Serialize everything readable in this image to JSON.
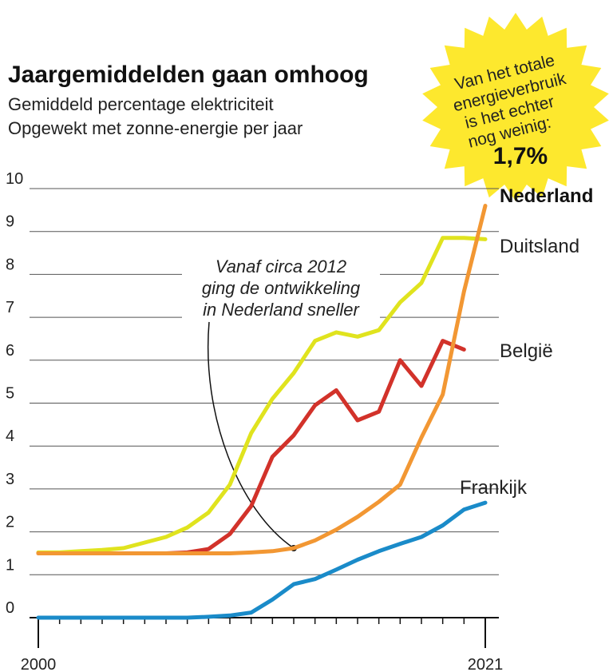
{
  "chart_data": {
    "type": "line",
    "title": "Jaargemiddelden gaan omhoog",
    "subtitle_lines": [
      "Gemiddeld percentage elektriciteit",
      "Opgewekt met zonne-energie per jaar"
    ],
    "ylim": [
      0,
      10
    ],
    "yticks": [
      "0",
      "1",
      "2",
      "3",
      "4",
      "5",
      "6",
      "7",
      "8",
      "9",
      "10"
    ],
    "xlim": [
      2000,
      2021
    ],
    "xtick_labels": [
      "2000",
      "2021"
    ],
    "x": [
      2000,
      2001,
      2002,
      2003,
      2004,
      2005,
      2006,
      2007,
      2008,
      2009,
      2010,
      2011,
      2012,
      2013,
      2014,
      2015,
      2016,
      2017,
      2018,
      2019,
      2020,
      2021
    ],
    "series": [
      {
        "name": "Duitsland",
        "color": "#e0e31e",
        "values": [
          1.52,
          1.52,
          1.55,
          1.58,
          1.62,
          1.75,
          1.88,
          2.1,
          2.45,
          3.1,
          4.3,
          5.1,
          5.7,
          6.45,
          6.65,
          6.55,
          6.7,
          7.35,
          7.8,
          8.85,
          8.85,
          8.82
        ]
      },
      {
        "name": "België",
        "color": "#d2322a",
        "values": [
          1.5,
          1.5,
          1.5,
          1.5,
          1.5,
          1.5,
          1.5,
          1.52,
          1.6,
          1.95,
          2.6,
          3.75,
          4.25,
          4.95,
          5.3,
          4.6,
          4.8,
          6.0,
          5.4,
          6.45,
          6.25,
          null
        ]
      },
      {
        "name": "Nederland",
        "color": "#f29733",
        "values": [
          1.5,
          1.5,
          1.5,
          1.5,
          1.5,
          1.5,
          1.5,
          1.5,
          1.5,
          1.5,
          1.52,
          1.55,
          1.62,
          1.8,
          2.05,
          2.35,
          2.7,
          3.1,
          4.2,
          5.2,
          7.6,
          9.6
        ]
      },
      {
        "name": "Frankijk",
        "color": "#1a8bc9",
        "values": [
          0,
          0,
          0,
          0,
          0,
          0,
          0,
          0,
          0.02,
          0.05,
          0.12,
          0.42,
          0.78,
          0.9,
          1.12,
          1.35,
          1.55,
          1.72,
          1.88,
          2.15,
          2.52,
          2.68
        ]
      }
    ],
    "annotation": {
      "lines": [
        "Vanaf circa 2012",
        "ging de ontwikkeling",
        "in Nederland sneller"
      ],
      "points_to": {
        "x": 2012,
        "y": 1.62
      }
    },
    "burst": {
      "lines": [
        "Van het totale",
        "energieverbruik",
        "is het echter",
        "nog weinig:"
      ],
      "value": "1,7%",
      "color": "#fde82e"
    }
  }
}
